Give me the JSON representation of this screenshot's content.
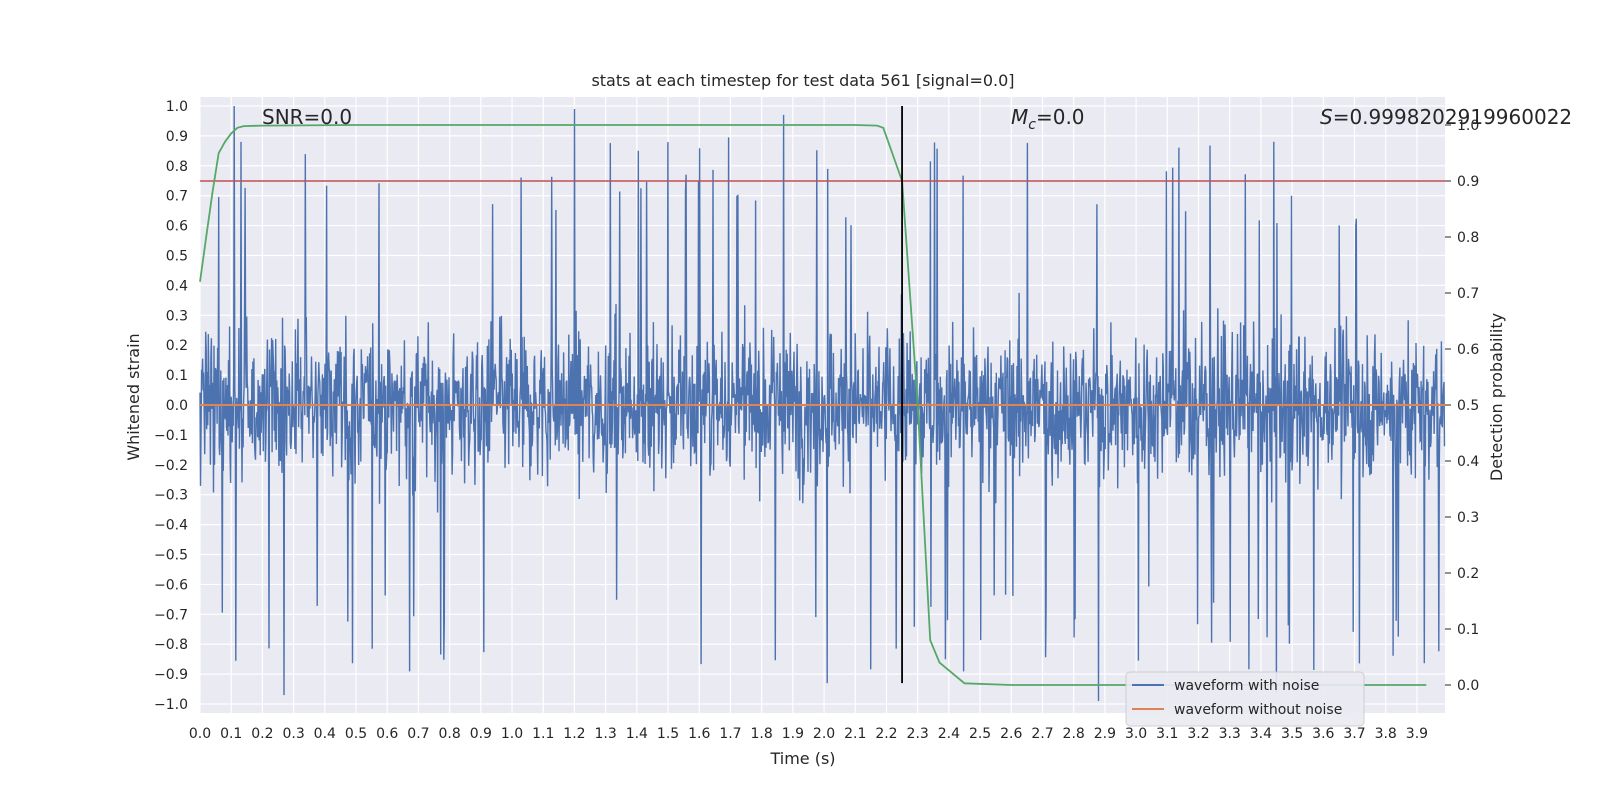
{
  "chart_data": {
    "type": "line",
    "title": "stats at each timestep for test data 561 [signal=0.0]",
    "xlabel": "Time (s)",
    "ylabel": "Whitened strain",
    "y2label": "Detection probability",
    "xlim": [
      0.0,
      3.99
    ],
    "ylim": [
      -1.03,
      1.03
    ],
    "y2lim": [
      -0.05,
      1.05
    ],
    "xticks": [
      "0.0",
      "0.1",
      "0.2",
      "0.3",
      "0.4",
      "0.5",
      "0.6",
      "0.7",
      "0.8",
      "0.9",
      "1.0",
      "1.1",
      "1.2",
      "1.3",
      "1.4",
      "1.5",
      "1.6",
      "1.7",
      "1.8",
      "1.9",
      "2.0",
      "2.1",
      "2.2",
      "2.3",
      "2.4",
      "2.5",
      "2.6",
      "2.7",
      "2.8",
      "2.9",
      "3.0",
      "3.1",
      "3.2",
      "3.3",
      "3.4",
      "3.5",
      "3.6",
      "3.7",
      "3.8",
      "3.9"
    ],
    "yticks": [
      "1.0",
      "0.9",
      "0.8",
      "0.7",
      "0.6",
      "0.5",
      "0.4",
      "0.3",
      "0.2",
      "0.1",
      "0.0",
      "−0.1",
      "−0.2",
      "−0.3",
      "−0.4",
      "−0.5",
      "−0.6",
      "−0.7",
      "−0.8",
      "−0.9",
      "−1.0"
    ],
    "y2ticks": [
      "1.0",
      "0.9",
      "0.8",
      "0.7",
      "0.6",
      "0.5",
      "0.4",
      "0.3",
      "0.2",
      "0.1",
      "0.0"
    ],
    "annotations": {
      "snr": "SNR=0.0",
      "mc_symbol": "M",
      "mc_sub": "c",
      "mc_value": "=0.0",
      "s_symbol": "S",
      "s_value": "=0.9998202919960022"
    },
    "series": [
      {
        "name": "waveform with noise",
        "color": "#4c72b0",
        "description": "whitened strain noise, approx. uniform-ish between -1.0 and 1.0 with dense sampling",
        "peaks": [
          {
            "x": 0.11,
            "y": 1.0
          },
          {
            "x": 1.2,
            "y": 0.99
          },
          {
            "x": 1.87,
            "y": 0.97
          },
          {
            "x": 0.27,
            "y": -0.97
          },
          {
            "x": 2.01,
            "y": -0.93
          },
          {
            "x": 2.88,
            "y": -0.99
          },
          {
            "x": 3.45,
            "y": -0.96
          }
        ]
      },
      {
        "name": "waveform without noise",
        "color": "#dd8452",
        "value": 0.0
      },
      {
        "name": "detection probability",
        "color": "#55a868",
        "axis": "right",
        "x": [
          0.0,
          0.02,
          0.04,
          0.06,
          0.08,
          0.1,
          0.12,
          0.14,
          0.2,
          0.5,
          1.0,
          1.5,
          2.0,
          2.1,
          2.17,
          2.19,
          2.25,
          2.3,
          2.34,
          2.37,
          2.45,
          2.6,
          3.0,
          3.5,
          3.93
        ],
        "y": [
          0.72,
          0.8,
          0.88,
          0.95,
          0.97,
          0.985,
          0.995,
          0.998,
          0.999,
          1.0,
          1.0,
          1.0,
          1.0,
          1.0,
          0.999,
          0.995,
          0.9,
          0.5,
          0.08,
          0.04,
          0.003,
          0.0,
          0.0,
          0.0,
          0.0
        ]
      }
    ],
    "hlines": [
      {
        "name": "threshold",
        "axis": "right",
        "y": 0.9,
        "color": "#c44e52"
      },
      {
        "name": "zero",
        "axis": "left",
        "y": 0.0,
        "color": "#dd8452"
      }
    ],
    "vlines": [
      {
        "name": "event-time",
        "x": 2.25,
        "color": "#000000"
      }
    ],
    "legend": {
      "position": "bottom-right",
      "entries": [
        {
          "label": "waveform with noise",
          "color": "#4c72b0"
        },
        {
          "label": "waveform without noise",
          "color": "#dd8452"
        }
      ]
    },
    "background": "#eaeaf2",
    "grid": true
  }
}
